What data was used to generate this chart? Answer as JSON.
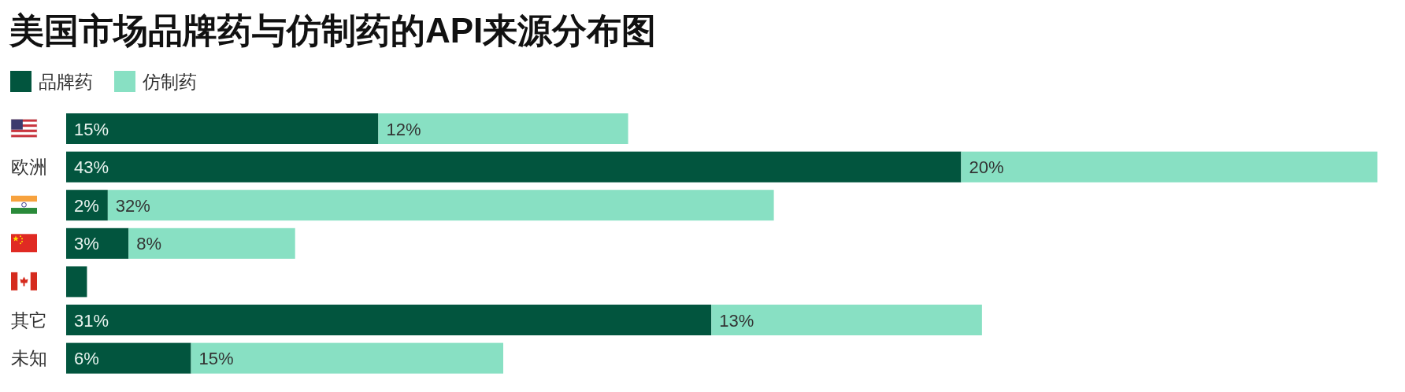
{
  "chart_data": {
    "type": "bar",
    "orientation": "horizontal",
    "stacked": true,
    "title": "美国市场品牌药与仿制药的API来源分布图",
    "categories": [
      null,
      "欧洲",
      null,
      null,
      null,
      "其它",
      "未知"
    ],
    "series": [
      {
        "name": "品牌药",
        "color": "#02553e",
        "values": [
          15,
          43,
          2,
          3,
          1,
          31,
          6
        ],
        "value_labels": [
          "15%",
          "43%",
          "2%",
          "3%",
          null,
          "31%",
          "6%"
        ]
      },
      {
        "name": "仿制药",
        "color": "#88e0c3",
        "values": [
          12,
          20,
          32,
          8,
          null,
          13,
          15
        ],
        "value_labels": [
          "12%",
          "20%",
          "32%",
          "8%",
          null,
          "13%",
          "15%"
        ]
      }
    ],
    "legend": "top left"
  }
}
